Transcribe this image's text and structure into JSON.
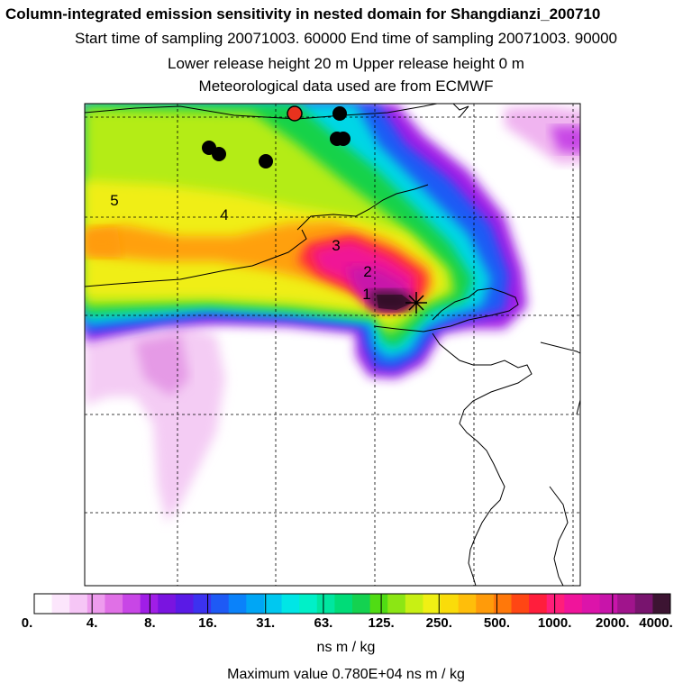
{
  "header": {
    "title": "Column-integrated emission sensitivity in nested domain for Shangdianzi_200710",
    "sampling": "Start time of sampling 20071003. 60000     End time of sampling 20071003. 90000",
    "release": "Lower release height   20 m          Upper release height    0 m",
    "met": "Meteorological data used are from ECMWF"
  },
  "map": {
    "contour_labels": [
      "1",
      "2",
      "3",
      "4",
      "5"
    ],
    "markers": [
      {
        "name": "red-site-marker",
        "color": "#e8321e"
      },
      {
        "name": "black-site-marker",
        "color": "#000000"
      }
    ],
    "release_site_symbol": "star-icon"
  },
  "colorbar": {
    "labels": [
      "0.",
      "4.",
      "8.",
      "16.",
      "31.",
      "63.",
      "125.",
      "250.",
      "500.",
      "1000.",
      "2000.",
      "4000."
    ],
    "colors": [
      "#ffffff",
      "#fce6fc",
      "#f6c6f6",
      "#ee9cee",
      "#e070e6",
      "#c846e6",
      "#a01ee6",
      "#7a14e0",
      "#5a1ae6",
      "#3c32f0",
      "#1e5af5",
      "#0a82fa",
      "#00a6f5",
      "#00c8f0",
      "#00e6e6",
      "#00f0c8",
      "#00e6a0",
      "#00dc78",
      "#14d250",
      "#50dc14",
      "#8ce614",
      "#c8f014",
      "#f0f014",
      "#fadc0a",
      "#ffbe0a",
      "#ff9b0a",
      "#ff780a",
      "#ff4614",
      "#ff1e3c",
      "#ff1e7a",
      "#f0149b",
      "#dc14aa",
      "#c814aa",
      "#a0148c",
      "#78146e",
      "#3c1432"
    ],
    "units": "ns m / kg"
  },
  "footer": {
    "max_value": "Maximum value  0.780E+04 ns m / kg"
  }
}
